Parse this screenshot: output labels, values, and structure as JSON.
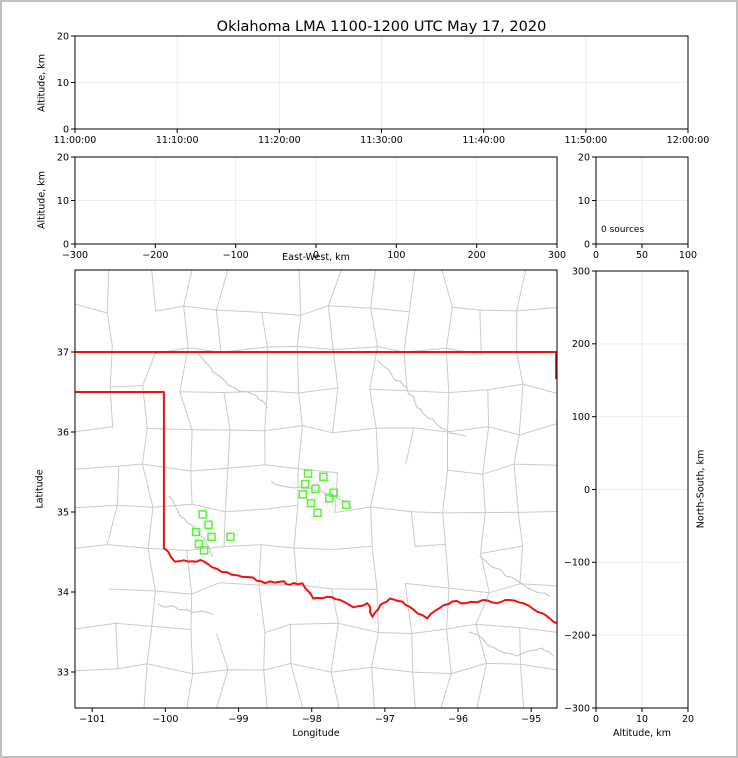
{
  "title": "Oklahoma LMA 1100-1200 UTC May 17, 2020",
  "colors": {
    "state_border": "#f01010",
    "county_line": "#cbcbcb",
    "river_line": "#c6c6c6",
    "station_marker": "#55f533",
    "gridline": "#ededed",
    "axis": "#000000",
    "frame": "#bfbfbf"
  },
  "panels": {
    "time_height": {
      "ylabel": "Altitude, km"
    },
    "ew_height": {
      "ylabel": "Altitude, km",
      "xlabel": "East-West, km"
    },
    "source_count": {
      "annotation": "0 sources"
    },
    "plan_map": {
      "xlabel": "Longitude",
      "ylabel": "Latitude"
    },
    "ns_height": {
      "xlabel": "Altitude, km",
      "ylabel": "North-South, km"
    }
  },
  "chart_data": [
    {
      "id": "time_height",
      "type": "scatter",
      "title": "Oklahoma LMA 1100-1200 UTC May 17, 2020",
      "ylabel": "Altitude, km",
      "x_tick_labels": [
        "11:00:00",
        "11:10:00",
        "11:20:00",
        "11:30:00",
        "11:40:00",
        "11:50:00",
        "12:00:00"
      ],
      "ylim": [
        0,
        20
      ],
      "yticks": [
        0,
        10,
        20
      ],
      "grid": true,
      "points": []
    },
    {
      "id": "ew_height",
      "type": "scatter",
      "xlabel": "East-West, km",
      "ylabel": "Altitude, km",
      "xlim": [
        -300,
        300
      ],
      "xticks": [
        -300,
        -200,
        -100,
        0,
        100,
        200,
        300
      ],
      "ylim": [
        0,
        20
      ],
      "yticks": [
        0,
        10,
        20
      ],
      "grid": true,
      "points": []
    },
    {
      "id": "source_count",
      "type": "scatter",
      "annotation": "0 sources",
      "xlim": [
        0,
        100
      ],
      "xticks": [
        0,
        50,
        100
      ],
      "ylim": [
        0,
        20
      ],
      "yticks": [
        0,
        10,
        20
      ],
      "grid": true,
      "points": []
    },
    {
      "id": "plan_map",
      "type": "scatter",
      "xlabel": "Longitude",
      "ylabel": "Latitude",
      "xlim": [
        -101.235,
        -94.648
      ],
      "xticks": [
        -101,
        -100,
        -99,
        -98,
        -97,
        -96,
        -95
      ],
      "ylim": [
        32.55,
        38.025
      ],
      "yticks": [
        33,
        34,
        35,
        36,
        37
      ],
      "grid": false,
      "marker": "open-square",
      "marker_color": "#55f533",
      "map_layers": [
        "county-borders-gray",
        "rivers-gray",
        "oklahoma-state-border-red"
      ],
      "stations": [
        [
          -99.49,
          34.97
        ],
        [
          -99.41,
          34.84
        ],
        [
          -99.58,
          34.75
        ],
        [
          -99.37,
          34.69
        ],
        [
          -99.11,
          34.69
        ],
        [
          -99.54,
          34.6
        ],
        [
          -99.47,
          34.52
        ],
        [
          -98.05,
          35.48
        ],
        [
          -97.84,
          35.44
        ],
        [
          -98.09,
          35.35
        ],
        [
          -97.95,
          35.29
        ],
        [
          -98.12,
          35.22
        ],
        [
          -97.7,
          35.24
        ],
        [
          -97.76,
          35.17
        ],
        [
          -98.01,
          35.11
        ],
        [
          -97.53,
          35.09
        ],
        [
          -97.92,
          34.99
        ]
      ],
      "state_boundary": {
        "north_border": [
          [
            -101.235,
            37.0
          ],
          [
            -94.648,
            37.0
          ]
        ],
        "east_border": [
          [
            -94.66,
            37.0
          ],
          [
            -94.66,
            36.67
          ]
        ],
        "panhandle": [
          [
            -101.235,
            36.5
          ],
          [
            -100.02,
            36.5
          ],
          [
            -100.02,
            34.55
          ]
        ],
        "red_river": [
          [
            -100.02,
            34.55
          ],
          [
            -99.87,
            34.38
          ],
          [
            -99.69,
            34.38
          ],
          [
            -99.52,
            34.4
          ],
          [
            -99.42,
            34.35
          ],
          [
            -99.23,
            34.25
          ],
          [
            -99.02,
            34.21
          ],
          [
            -98.8,
            34.18
          ],
          [
            -98.64,
            34.11
          ],
          [
            -98.43,
            34.13
          ],
          [
            -98.3,
            34.09
          ],
          [
            -98.13,
            34.11
          ],
          [
            -97.98,
            33.92
          ],
          [
            -97.79,
            33.94
          ],
          [
            -97.61,
            33.9
          ],
          [
            -97.43,
            33.81
          ],
          [
            -97.24,
            33.86
          ],
          [
            -97.17,
            33.69
          ],
          [
            -97.06,
            33.84
          ],
          [
            -96.93,
            33.92
          ],
          [
            -96.76,
            33.88
          ],
          [
            -96.61,
            33.78
          ],
          [
            -96.42,
            33.67
          ],
          [
            -96.25,
            33.8
          ],
          [
            -96.08,
            33.88
          ],
          [
            -95.9,
            33.86
          ],
          [
            -95.66,
            33.9
          ],
          [
            -95.47,
            33.86
          ],
          [
            -95.29,
            33.9
          ],
          [
            -95.11,
            33.86
          ],
          [
            -94.91,
            33.75
          ],
          [
            -94.72,
            33.65
          ],
          [
            -94.64,
            33.62
          ]
        ]
      }
    },
    {
      "id": "ns_height",
      "type": "scatter",
      "xlabel": "Altitude, km",
      "ylabel": "North-South, km",
      "xlim": [
        0,
        20
      ],
      "xticks": [
        0,
        10,
        20
      ],
      "ylim": [
        -300,
        300
      ],
      "yticks": [
        -300,
        -200,
        -100,
        0,
        100,
        200,
        300
      ],
      "grid": true,
      "points": []
    }
  ]
}
